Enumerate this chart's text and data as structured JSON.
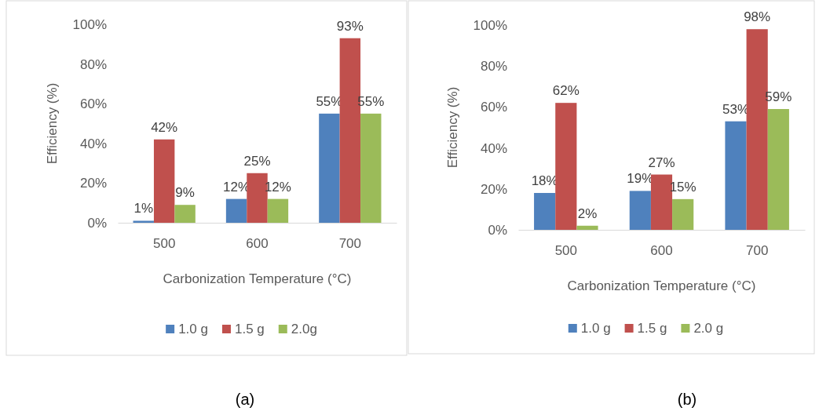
{
  "chart_data": [
    {
      "type": "bar",
      "xlabel": "Carbonization Temperature (°C)",
      "ylabel": "Efficiency (%)",
      "categories": [
        "500",
        "600",
        "700"
      ],
      "series": [
        {
          "name": "1.0 g",
          "color": "#4f81bd",
          "values": [
            1,
            12,
            55
          ],
          "value_labels": [
            "1%",
            "12%",
            "55%"
          ]
        },
        {
          "name": "1.5 g",
          "color": "#c0504d",
          "values": [
            42,
            25,
            93
          ],
          "value_labels": [
            "42%",
            "25%",
            "93%"
          ]
        },
        {
          "name": "2.0g",
          "color": "#9bbb59",
          "values": [
            9,
            12,
            55
          ],
          "value_labels": [
            "9%",
            "12%",
            "55%"
          ]
        }
      ],
      "ylim": [
        0,
        100
      ],
      "yticks": [
        {
          "value": 0,
          "label": "0%"
        },
        {
          "value": 20,
          "label": "20%"
        },
        {
          "value": 40,
          "label": "40%"
        },
        {
          "value": 60,
          "label": "60%"
        },
        {
          "value": 80,
          "label": "80%"
        },
        {
          "value": 100,
          "label": "100%"
        }
      ],
      "legend": "bottom",
      "annotations": [
        "(a)"
      ]
    },
    {
      "type": "bar",
      "xlabel": "Carbonization Temperature (°C)",
      "ylabel": "Efficiency (%)",
      "categories": [
        "500",
        "600",
        "700"
      ],
      "series": [
        {
          "name": "1.0 g",
          "color": "#4f81bd",
          "values": [
            18,
            19,
            53
          ],
          "value_labels": [
            "18%",
            "19%",
            "53%"
          ]
        },
        {
          "name": "1.5 g",
          "color": "#c0504d",
          "values": [
            62,
            27,
            98
          ],
          "value_labels": [
            "62%",
            "27%",
            "98%"
          ]
        },
        {
          "name": "2.0 g",
          "color": "#9bbb59",
          "values": [
            2,
            15,
            59
          ],
          "value_labels": [
            "2%",
            "15%",
            "59%"
          ]
        }
      ],
      "ylim": [
        0,
        100
      ],
      "yticks": [
        {
          "value": 0,
          "label": "0%"
        },
        {
          "value": 20,
          "label": "20%"
        },
        {
          "value": 40,
          "label": "40%"
        },
        {
          "value": 60,
          "label": "60%"
        },
        {
          "value": 80,
          "label": "80%"
        },
        {
          "value": 100,
          "label": "100%"
        }
      ],
      "legend": "bottom",
      "annotations": [
        "(b)"
      ]
    }
  ]
}
